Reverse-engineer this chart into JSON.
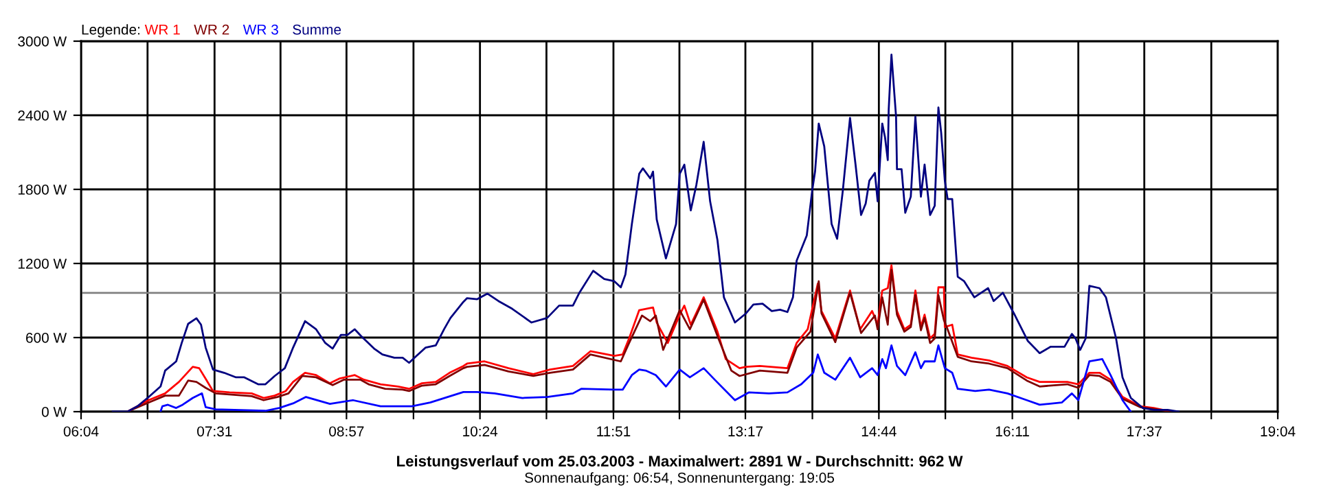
{
  "chart_data": {
    "type": "line",
    "title": "Leistungsverlauf vom 25.03.2003 - Maximalwert: 2891 W - Durchschnitt: 962 W",
    "subtitle": "Sonnenaufgang: 06:54, Sonnenuntergang: 19:05",
    "legend_title": "Legende:",
    "legend": "top left",
    "grid": true,
    "marker": "none",
    "line_style": "solid",
    "xlim": [
      6.0667,
      19.0667
    ],
    "ylim": [
      0,
      3000
    ],
    "xticks": [
      {
        "value": 6.0667,
        "label": "06:04"
      },
      {
        "value": 6.7889,
        "label": null
      },
      {
        "value": 7.5167,
        "label": "07:31"
      },
      {
        "value": 8.2333,
        "label": null
      },
      {
        "value": 8.95,
        "label": "08:57"
      },
      {
        "value": 9.6778,
        "label": null
      },
      {
        "value": 10.4,
        "label": "10:24"
      },
      {
        "value": 11.1222,
        "label": null
      },
      {
        "value": 11.85,
        "label": "11:51"
      },
      {
        "value": 12.5667,
        "label": null
      },
      {
        "value": 13.2833,
        "label": "13:17"
      },
      {
        "value": 14.0111,
        "label": null
      },
      {
        "value": 14.7333,
        "label": "14:44"
      },
      {
        "value": 15.4556,
        "label": null
      },
      {
        "value": 16.1833,
        "label": "16:11"
      },
      {
        "value": 16.9,
        "label": null
      },
      {
        "value": 17.6167,
        "label": "17:37"
      },
      {
        "value": 18.3444,
        "label": null
      },
      {
        "value": 19.0667,
        "label": "19:04"
      }
    ],
    "yticks": [
      {
        "value": 0,
        "label": "0 W"
      },
      {
        "value": 600,
        "label": "600 W"
      },
      {
        "value": 1200,
        "label": "1200 W"
      },
      {
        "value": 1800,
        "label": "1800 W"
      },
      {
        "value": 2400,
        "label": "2400 W"
      },
      {
        "value": 3000,
        "label": "3000 W"
      }
    ],
    "ref_lines": [
      {
        "axis": "y",
        "value": 962,
        "color": "#808080"
      }
    ],
    "series": [
      {
        "name": "WR 1",
        "color": "#ff0000",
        "x": [
          6.57,
          6.8,
          6.98,
          7.13,
          7.28,
          7.35,
          7.42,
          7.5,
          7.68,
          7.92,
          8.05,
          8.17,
          8.29,
          8.37,
          8.5,
          8.62,
          8.77,
          8.87,
          9.04,
          9.14,
          9.32,
          9.51,
          9.63,
          9.77,
          9.92,
          10.07,
          10.22,
          10.26,
          10.45,
          10.71,
          10.98,
          11.16,
          11.41,
          11.6,
          11.86,
          11.95,
          12.02,
          12.13,
          12.28,
          12.32,
          12.44,
          12.57,
          12.62,
          12.69,
          12.83,
          12.98,
          13.07,
          13.22,
          13.29,
          13.44,
          13.74,
          13.84,
          13.96,
          14.07,
          14.11,
          14.26,
          14.42,
          14.53,
          14.66,
          14.72,
          14.77,
          14.83,
          14.87,
          14.93,
          15.01,
          15.08,
          15.13,
          15.19,
          15.23,
          15.29,
          15.34,
          15.38,
          15.44,
          15.45,
          15.53,
          15.59,
          15.74,
          15.93,
          16.13,
          16.34,
          16.48,
          16.78,
          16.9,
          17.02,
          17.13,
          17.25,
          17.38,
          17.57,
          17.72,
          17.87,
          17.92
        ],
        "values": [
          0,
          93,
          148,
          241,
          363,
          352,
          267,
          167,
          156,
          148,
          111,
          130,
          167,
          241,
          315,
          296,
          230,
          267,
          296,
          259,
          222,
          204,
          185,
          230,
          241,
          315,
          370,
          389,
          407,
          352,
          304,
          341,
          370,
          489,
          452,
          463,
          593,
          822,
          844,
          722,
          556,
          785,
          859,
          704,
          926,
          648,
          426,
          352,
          363,
          370,
          352,
          556,
          667,
          1037,
          815,
          593,
          981,
          667,
          815,
          704,
          981,
          1000,
          1185,
          815,
          667,
          704,
          981,
          685,
          785,
          593,
          630,
          1007,
          1007,
          685,
          704,
          463,
          437,
          415,
          370,
          278,
          241,
          241,
          222,
          315,
          315,
          259,
          119,
          44,
          30,
          7,
          0
        ]
      },
      {
        "name": "WR 2",
        "color": "#800000",
        "x": [
          6.57,
          6.8,
          6.98,
          7.13,
          7.23,
          7.32,
          7.42,
          7.53,
          7.92,
          8.05,
          8.2,
          8.32,
          8.47,
          8.62,
          8.8,
          8.92,
          9.1,
          9.19,
          9.37,
          9.56,
          9.63,
          9.77,
          9.92,
          10.07,
          10.22,
          10.26,
          10.45,
          10.71,
          10.98,
          11.16,
          11.41,
          11.6,
          11.93,
          12.02,
          12.16,
          12.25,
          12.31,
          12.39,
          12.57,
          12.68,
          12.83,
          12.99,
          13.13,
          13.22,
          13.44,
          13.74,
          13.84,
          13.99,
          14.08,
          14.11,
          14.26,
          14.42,
          14.54,
          14.69,
          14.72,
          14.77,
          14.83,
          14.87,
          14.93,
          15.01,
          15.08,
          15.13,
          15.19,
          15.23,
          15.29,
          15.34,
          15.38,
          15.44,
          15.48,
          15.59,
          15.74,
          15.93,
          16.13,
          16.34,
          16.48,
          16.78,
          16.9,
          17.02,
          17.13,
          17.25,
          17.38,
          17.57,
          17.72,
          17.92
        ],
        "values": [
          0,
          74,
          130,
          130,
          252,
          241,
          193,
          148,
          126,
          93,
          119,
          148,
          289,
          278,
          215,
          259,
          259,
          222,
          185,
          178,
          167,
          211,
          222,
          289,
          352,
          363,
          378,
          326,
          289,
          315,
          341,
          463,
          407,
          556,
          778,
          733,
          778,
          500,
          822,
          667,
          907,
          593,
          333,
          289,
          333,
          315,
          519,
          648,
          1056,
          796,
          563,
          963,
          637,
          778,
          667,
          926,
          704,
          1148,
          785,
          648,
          685,
          944,
          659,
          759,
          556,
          593,
          944,
          741,
          667,
          444,
          407,
          389,
          352,
          252,
          204,
          222,
          193,
          296,
          289,
          241,
          104,
          37,
          22,
          0
        ]
      },
      {
        "name": "WR 3",
        "color": "#0000ff",
        "x": [
          6.93,
          6.95,
          7.01,
          7.1,
          7.17,
          7.28,
          7.38,
          7.42,
          7.53,
          8.07,
          8.22,
          8.37,
          8.51,
          8.77,
          9.02,
          9.32,
          9.66,
          9.86,
          10.22,
          10.37,
          10.56,
          10.86,
          11.13,
          11.41,
          11.5,
          11.86,
          11.95,
          12.05,
          12.13,
          12.2,
          12.31,
          12.42,
          12.57,
          12.68,
          12.83,
          12.95,
          13.17,
          13.32,
          13.54,
          13.74,
          13.89,
          14.02,
          14.07,
          14.14,
          14.26,
          14.42,
          14.53,
          14.66,
          14.72,
          14.77,
          14.81,
          14.87,
          14.93,
          15.02,
          15.13,
          15.19,
          15.23,
          15.34,
          15.38,
          15.45,
          15.53,
          15.59,
          15.78,
          15.93,
          16.13,
          16.34,
          16.48,
          16.72,
          16.83,
          16.9,
          17.02,
          17.16,
          17.25,
          17.38,
          17.47
        ],
        "values": [
          0,
          44,
          56,
          30,
          56,
          111,
          148,
          37,
          19,
          7,
          30,
          67,
          119,
          63,
          93,
          44,
          44,
          74,
          159,
          159,
          148,
          111,
          119,
          148,
          185,
          178,
          178,
          296,
          341,
          333,
          296,
          204,
          341,
          278,
          352,
          259,
          93,
          156,
          148,
          156,
          222,
          315,
          463,
          315,
          259,
          437,
          278,
          352,
          296,
          426,
          352,
          537,
          370,
          296,
          481,
          352,
          407,
          407,
          537,
          352,
          315,
          185,
          167,
          178,
          148,
          93,
          56,
          74,
          148,
          93,
          407,
          426,
          296,
          93,
          0
        ]
      },
      {
        "name": "Summe",
        "color": "#000080",
        "x": [
          6.41,
          6.57,
          6.68,
          6.8,
          6.93,
          6.98,
          7.1,
          7.16,
          7.23,
          7.32,
          7.37,
          7.42,
          7.5,
          7.62,
          7.75,
          7.84,
          7.99,
          8.07,
          8.17,
          8.28,
          8.37,
          8.5,
          8.62,
          8.72,
          8.8,
          8.89,
          8.96,
          9.04,
          9.11,
          9.25,
          9.34,
          9.47,
          9.56,
          9.63,
          9.71,
          9.81,
          9.92,
          10.01,
          10.08,
          10.22,
          10.26,
          10.37,
          10.48,
          10.6,
          10.75,
          10.96,
          11.13,
          11.26,
          11.41,
          11.48,
          11.63,
          11.75,
          11.86,
          11.93,
          11.98,
          12.05,
          12.13,
          12.17,
          12.25,
          12.28,
          12.32,
          12.42,
          12.53,
          12.57,
          12.62,
          12.69,
          12.75,
          12.83,
          12.9,
          12.98,
          13.05,
          13.17,
          13.29,
          13.37,
          13.47,
          13.57,
          13.66,
          13.74,
          13.8,
          13.84,
          13.95,
          14.01,
          14.04,
          14.08,
          14.14,
          14.22,
          14.28,
          14.34,
          14.42,
          14.48,
          14.54,
          14.59,
          14.63,
          14.69,
          14.72,
          14.77,
          14.8,
          14.83,
          14.84,
          14.87,
          14.92,
          14.93,
          14.98,
          15.02,
          15.08,
          15.13,
          15.19,
          15.23,
          15.29,
          15.34,
          15.38,
          15.41,
          15.45,
          15.48,
          15.53,
          15.59,
          15.66,
          15.77,
          15.92,
          15.98,
          16.08,
          16.2,
          16.35,
          16.48,
          16.6,
          16.75,
          16.83,
          16.87,
          16.92,
          16.98,
          17.02,
          17.13,
          17.2,
          17.31,
          17.38,
          17.47,
          17.6,
          17.72,
          17.87,
          17.99
        ],
        "values": [
          0,
          0,
          44,
          118,
          204,
          333,
          407,
          556,
          711,
          756,
          704,
          519,
          341,
          315,
          278,
          278,
          222,
          222,
          289,
          352,
          519,
          733,
          667,
          556,
          511,
          622,
          622,
          667,
          611,
          511,
          463,
          437,
          437,
          396,
          452,
          519,
          537,
          667,
          759,
          889,
          919,
          911,
          956,
          896,
          833,
          722,
          759,
          859,
          859,
          963,
          1141,
          1074,
          1056,
          1007,
          1111,
          1519,
          1926,
          1970,
          1889,
          1944,
          1556,
          1241,
          1519,
          1926,
          2000,
          1630,
          1833,
          2185,
          1704,
          1389,
          926,
          722,
          796,
          867,
          874,
          815,
          826,
          807,
          926,
          1222,
          1426,
          1796,
          1944,
          2333,
          2148,
          1519,
          1400,
          1778,
          2378,
          2000,
          1593,
          1685,
          1870,
          1933,
          1704,
          2333,
          2222,
          2037,
          2444,
          2891,
          2389,
          1963,
          1963,
          1611,
          1741,
          2389,
          1741,
          2000,
          1593,
          1667,
          2463,
          2259,
          1870,
          1722,
          1722,
          1093,
          1056,
          926,
          1000,
          896,
          963,
          796,
          574,
          474,
          526,
          526,
          630,
          593,
          500,
          593,
          1019,
          1000,
          926,
          593,
          278,
          111,
          30,
          15,
          15,
          0
        ]
      }
    ]
  }
}
